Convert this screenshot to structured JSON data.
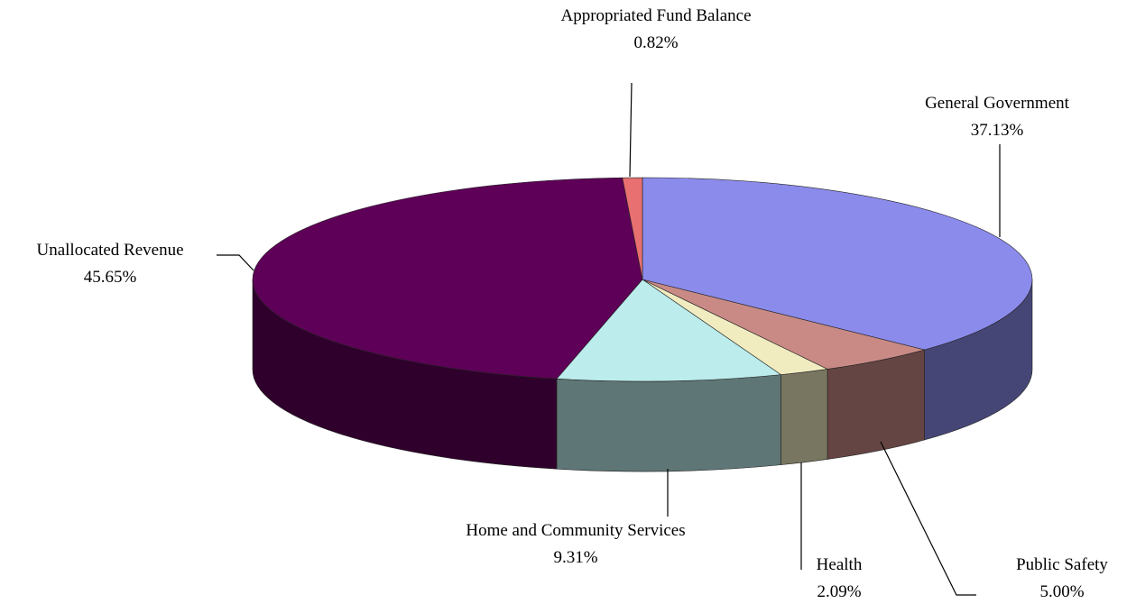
{
  "chart_data": {
    "type": "pie3d",
    "categories": [
      "General Government",
      "Public Safety",
      "Health",
      "Home and Community Services",
      "Unallocated Revenue",
      "Appropriated Fund Balance"
    ],
    "values": [
      37.13,
      5.0,
      2.09,
      9.31,
      45.65,
      0.82
    ],
    "value_labels": [
      "37.13%",
      "5.00%",
      "2.09%",
      "9.31%",
      "45.65%",
      "0.82%"
    ],
    "colors": [
      "#8b8bec",
      "#c98a86",
      "#f0ecc0",
      "#bcecec",
      "#5e0057",
      "#e87070"
    ]
  }
}
